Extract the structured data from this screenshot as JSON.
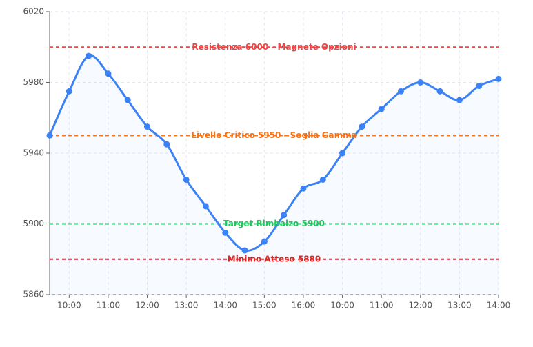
{
  "chart_data": {
    "type": "line",
    "categories": [
      null,
      "10:00",
      null,
      "11:00",
      null,
      "12:00",
      null,
      "13:00",
      null,
      "14:00",
      null,
      "15:00",
      null,
      "16:00",
      null,
      "10:00",
      null,
      "11:00",
      null,
      "12:00",
      null,
      "13:00",
      null,
      "14:00"
    ],
    "values": [
      5950,
      5975,
      5995,
      5985,
      5970,
      5955,
      5945,
      5925,
      5910,
      5895,
      5885,
      5890,
      5905,
      5920,
      5925,
      5940,
      5955,
      5965,
      5975,
      5980,
      5975,
      5970,
      5978,
      5982
    ],
    "color": "#3b82f6",
    "ylim": [
      5860,
      6020
    ],
    "yticks": [
      5860,
      5900,
      5940,
      5980,
      6020
    ],
    "grid": true,
    "reference_lines": [
      {
        "value": 6000,
        "label": "Resistenza 6000 - Magnete Opzioni",
        "color": "#ef4444"
      },
      {
        "value": 5950,
        "label": "Livello Critico 5950 - Soglia Gamma",
        "color": "#f97316"
      },
      {
        "value": 5900,
        "label": "Target Rimbalzo 5900",
        "color": "#22c55e"
      },
      {
        "value": 5880,
        "label": "Minimo Atteso 5880",
        "color": "#dc2626"
      }
    ]
  }
}
